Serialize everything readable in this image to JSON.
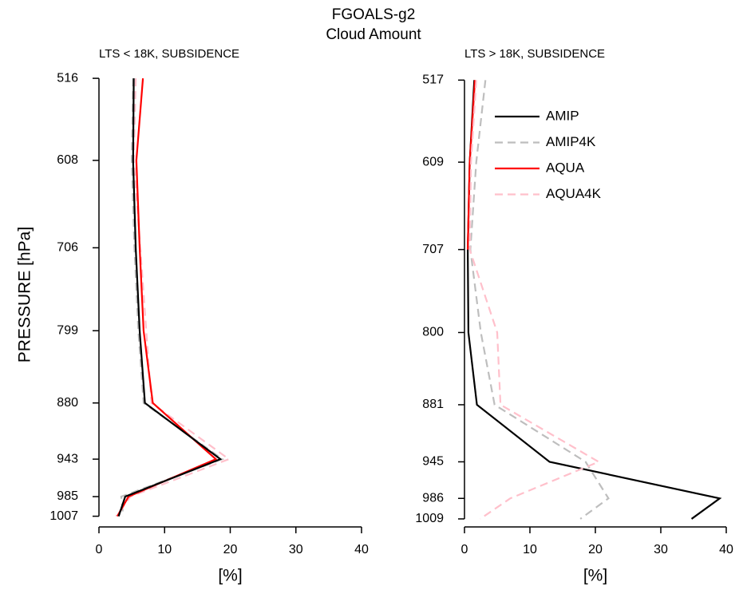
{
  "figure": {
    "title": [
      "FGOALS-g2",
      "Cloud Amount"
    ]
  },
  "chart_data": [
    {
      "type": "line",
      "subtitle": "LTS < 18K, SUBSIDENCE",
      "ylabel": "PRESSURE [hPa]",
      "xlabel": "[%]",
      "y": [
        516,
        608,
        706,
        799,
        880,
        943,
        985,
        1007
      ],
      "series": [
        {
          "name": "AMIP4K",
          "color": "#bebebe",
          "dashed": true,
          "values": [
            5.2,
            5.0,
            5.4,
            6.0,
            6.8,
            18.8,
            3.4,
            3.7
          ]
        },
        {
          "name": "AQUA4K",
          "color": "#ffc0cb",
          "dashed": true,
          "values": [
            5.6,
            5.3,
            6.3,
            7.2,
            8.0,
            19.8,
            4.8,
            2.6
          ]
        },
        {
          "name": "AQUA",
          "color": "#ff0000",
          "dashed": false,
          "values": [
            6.7,
            5.7,
            6.2,
            6.8,
            8.2,
            17.8,
            4.5,
            2.8
          ]
        },
        {
          "name": "AMIP",
          "color": "#000000",
          "dashed": false,
          "values": [
            5.3,
            5.2,
            5.6,
            6.2,
            7.0,
            18.5,
            4.0,
            3.0
          ]
        }
      ],
      "xlim": [
        0,
        40
      ],
      "xticks": [
        0,
        10,
        20,
        30,
        40
      ],
      "ylim": [
        1019,
        498
      ],
      "yticks": [
        516,
        608,
        706,
        799,
        880,
        943,
        985,
        1007
      ]
    },
    {
      "type": "line",
      "subtitle": "LTS > 18K, SUBSIDENCE",
      "xlabel": "[%]",
      "legend": "top-right",
      "y": [
        517,
        609,
        707,
        800,
        881,
        945,
        986,
        1009
      ],
      "series": [
        {
          "name": "AMIP",
          "color": "#000000",
          "dashed": false,
          "values": [
            1.5,
            0.8,
            0.5,
            0.6,
            1.9,
            13.0,
            39.0,
            34.7
          ]
        },
        {
          "name": "AMIP4K",
          "color": "#bebebe",
          "dashed": true,
          "values": [
            3.2,
            1.8,
            0.9,
            2.5,
            4.6,
            18.5,
            22.0,
            17.7
          ]
        },
        {
          "name": "AQUA",
          "color": "#ff0000",
          "dashed": false,
          "values": [
            1.6,
            0.8,
            0.5,
            null,
            null,
            null,
            null,
            null
          ]
        },
        {
          "name": "AQUA4K",
          "color": "#ffc0cb",
          "dashed": true,
          "values": [
            1.8,
            1.0,
            0.8,
            5.0,
            5.5,
            20.5,
            7.0,
            2.4
          ]
        }
      ],
      "xlim": [
        0,
        40
      ],
      "xticks": [
        0,
        10,
        20,
        30,
        40
      ],
      "ylim": [
        1018,
        497
      ],
      "yticks": [
        517,
        609,
        707,
        800,
        881,
        945,
        986,
        1009
      ]
    }
  ]
}
